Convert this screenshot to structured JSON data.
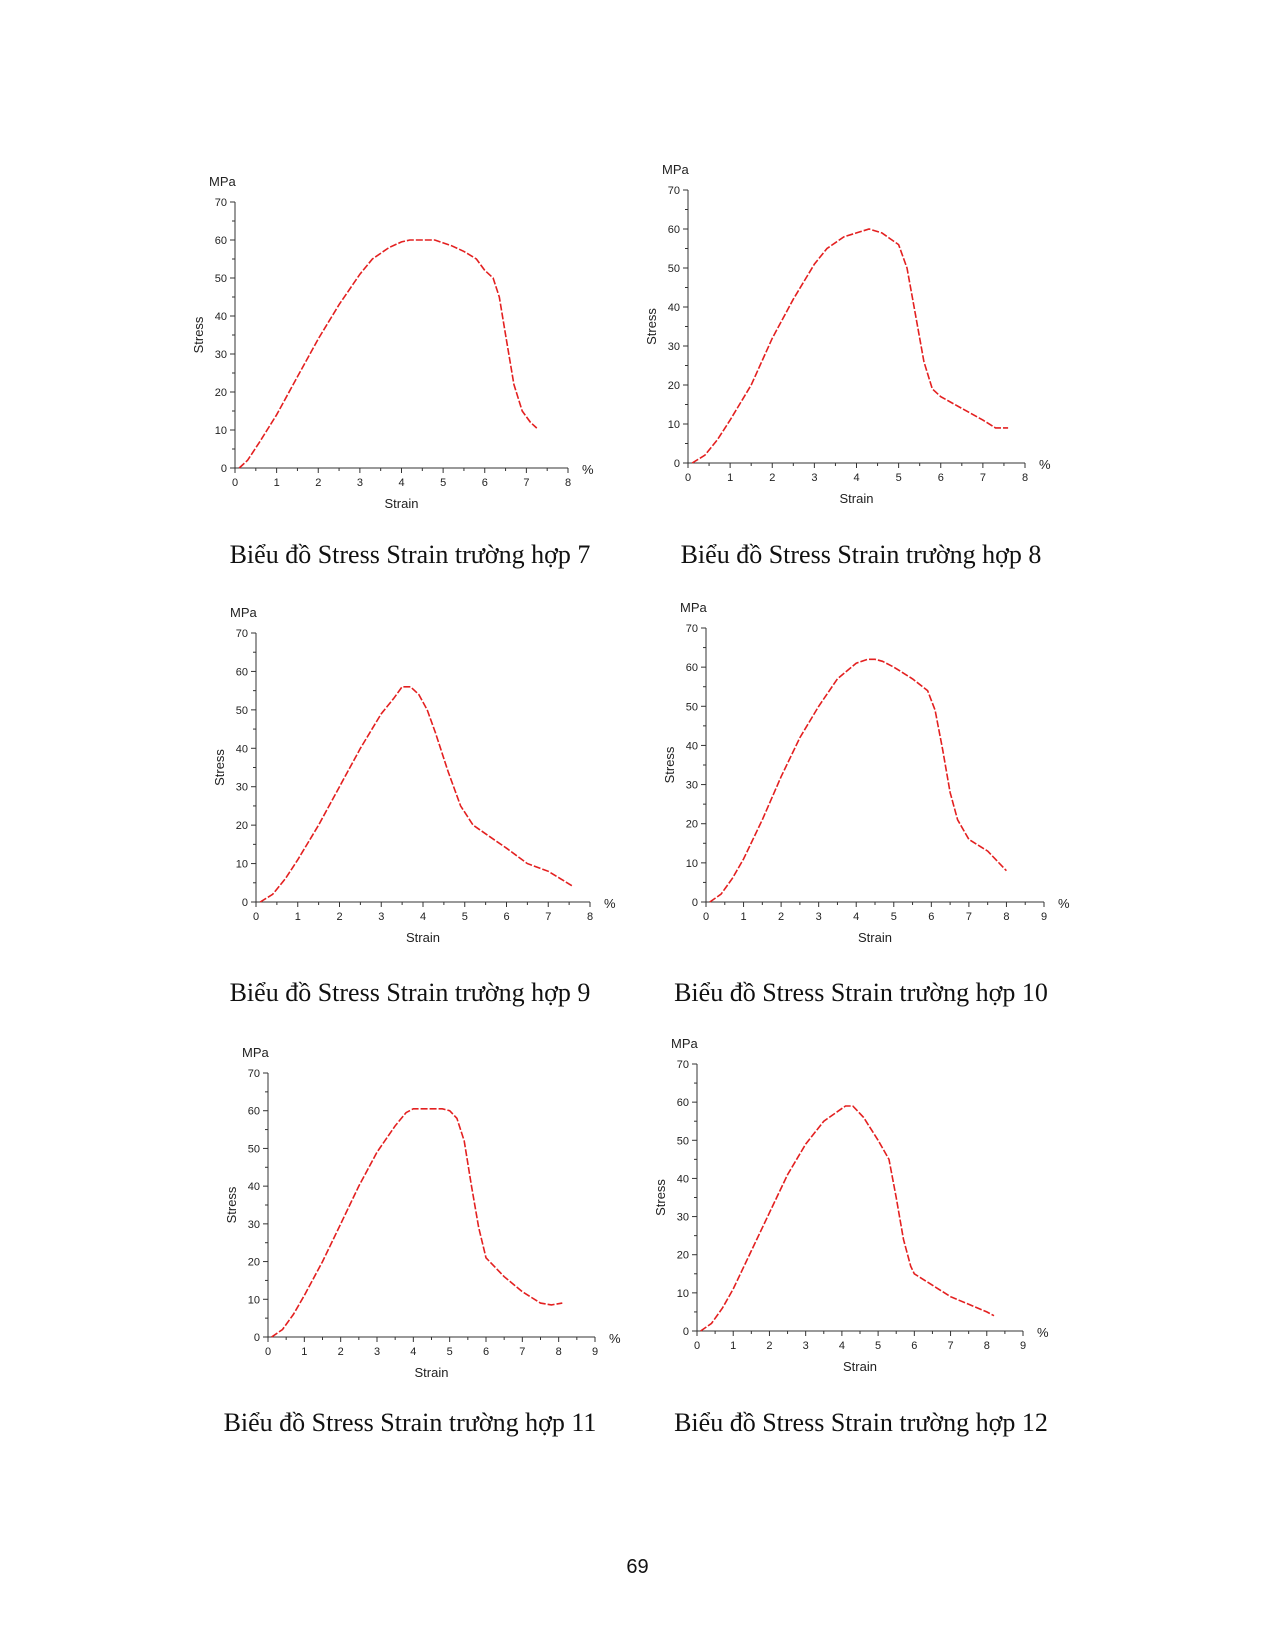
{
  "page_number": "69",
  "colors": {
    "curve": "#e32020",
    "axis": "#333333",
    "text": "#111111"
  },
  "chart_data": [
    {
      "type": "line",
      "caption": "Biểu đồ Stress Strain trường hợp 7",
      "unit_y": "MPa",
      "unit_x": "%",
      "ylabel": "Stress",
      "xlabel": "Strain",
      "xlim": [
        0,
        8
      ],
      "ylim": [
        0,
        70
      ],
      "xticks": [
        0,
        1,
        2,
        3,
        4,
        5,
        6,
        7,
        8
      ],
      "yticks": [
        0,
        10,
        20,
        30,
        40,
        50,
        60,
        70
      ],
      "series": [
        {
          "name": "Stress",
          "x": [
            0.1,
            0.3,
            0.6,
            1.0,
            1.5,
            2.0,
            2.5,
            3.0,
            3.3,
            3.7,
            4.0,
            4.2,
            4.5,
            4.8,
            5.2,
            5.5,
            5.8,
            6.0,
            6.2,
            6.35,
            6.5,
            6.7,
            6.9,
            7.1,
            7.25
          ],
          "y": [
            0,
            2,
            7,
            14,
            24,
            34,
            43,
            51,
            55,
            58,
            59.5,
            60,
            60,
            60,
            58.5,
            57,
            55,
            52,
            50,
            45,
            35,
            22,
            15,
            12,
            10.5
          ]
        }
      ]
    },
    {
      "type": "line",
      "caption": "Biểu đồ Stress Strain trường hợp 8",
      "unit_y": "MPa",
      "unit_x": "%",
      "ylabel": "Stress",
      "xlabel": "Strain",
      "xlim": [
        0,
        8
      ],
      "ylim": [
        0,
        70
      ],
      "xticks": [
        0,
        1,
        2,
        3,
        4,
        5,
        6,
        7,
        8
      ],
      "yticks": [
        0,
        10,
        20,
        30,
        40,
        50,
        60,
        70
      ],
      "series": [
        {
          "name": "Stress",
          "x": [
            0.1,
            0.4,
            0.7,
            1.0,
            1.5,
            2.0,
            2.5,
            3.0,
            3.3,
            3.7,
            4.0,
            4.3,
            4.6,
            5.0,
            5.2,
            5.4,
            5.6,
            5.8,
            6.0,
            6.5,
            7.0,
            7.3,
            7.6
          ],
          "y": [
            0,
            2,
            6,
            11,
            20,
            32,
            42,
            51,
            55,
            58,
            59,
            60,
            59,
            56,
            50,
            38,
            26,
            19,
            17,
            14,
            11,
            9,
            9
          ]
        }
      ]
    },
    {
      "type": "line",
      "caption": "Biểu đồ Stress Strain trường hợp 9",
      "unit_y": "MPa",
      "unit_x": "%",
      "ylabel": "Stress",
      "xlabel": "Strain",
      "xlim": [
        0,
        8
      ],
      "ylim": [
        0,
        70
      ],
      "xticks": [
        0,
        1,
        2,
        3,
        4,
        5,
        6,
        7,
        8
      ],
      "yticks": [
        0,
        10,
        20,
        30,
        40,
        50,
        60,
        70
      ],
      "series": [
        {
          "name": "Stress",
          "x": [
            0.1,
            0.4,
            0.7,
            1.0,
            1.5,
            2.0,
            2.5,
            3.0,
            3.3,
            3.5,
            3.7,
            3.9,
            4.1,
            4.3,
            4.6,
            4.9,
            5.2,
            5.6,
            6.0,
            6.5,
            7.0,
            7.3,
            7.6
          ],
          "y": [
            0,
            2,
            6,
            11,
            20,
            30,
            40,
            49,
            53,
            56,
            56,
            54,
            50,
            44,
            34,
            25,
            20,
            17,
            14,
            10,
            8,
            6,
            4
          ]
        }
      ]
    },
    {
      "type": "line",
      "caption": "Biểu đồ Stress Strain trường hợp 10",
      "unit_y": "MPa",
      "unit_x": "%",
      "ylabel": "Stress",
      "xlabel": "Strain",
      "xlim": [
        0,
        9
      ],
      "ylim": [
        0,
        70
      ],
      "xticks": [
        0,
        1,
        2,
        3,
        4,
        5,
        6,
        7,
        8,
        9
      ],
      "yticks": [
        0,
        10,
        20,
        30,
        40,
        50,
        60,
        70
      ],
      "series": [
        {
          "name": "Stress",
          "x": [
            0.1,
            0.4,
            0.7,
            1.0,
            1.5,
            2.0,
            2.5,
            3.0,
            3.5,
            4.0,
            4.3,
            4.5,
            4.7,
            5.0,
            5.5,
            5.9,
            6.1,
            6.3,
            6.5,
            6.7,
            7.0,
            7.5,
            8.0
          ],
          "y": [
            0,
            2,
            6,
            11,
            21,
            32,
            42,
            50,
            57,
            61,
            62,
            62,
            61.5,
            60,
            57,
            54,
            49,
            39,
            28,
            21,
            16,
            13,
            8
          ]
        }
      ]
    },
    {
      "type": "line",
      "caption": "Biểu đồ Stress Strain trường hợp 11",
      "unit_y": "MPa",
      "unit_x": "%",
      "ylabel": "Stress",
      "xlabel": "Strain",
      "xlim": [
        0,
        9
      ],
      "ylim": [
        0,
        70
      ],
      "xticks": [
        0,
        1,
        2,
        3,
        4,
        5,
        6,
        7,
        8,
        9
      ],
      "yticks": [
        0,
        10,
        20,
        30,
        40,
        50,
        60,
        70
      ],
      "series": [
        {
          "name": "Stress",
          "x": [
            0.1,
            0.4,
            0.7,
            1.0,
            1.5,
            2.0,
            2.5,
            3.0,
            3.5,
            3.8,
            4.0,
            4.5,
            4.8,
            5.0,
            5.2,
            5.4,
            5.6,
            5.8,
            6.0,
            6.5,
            7.0,
            7.5,
            7.8,
            8.1
          ],
          "y": [
            0,
            2,
            6,
            11,
            20,
            30,
            40,
            49,
            56,
            59.5,
            60.5,
            60.5,
            60.5,
            60,
            58,
            52,
            40,
            29,
            21,
            16,
            12,
            9,
            8.5,
            9
          ]
        }
      ]
    },
    {
      "type": "line",
      "caption": "Biểu đồ Stress Strain trường hợp 12",
      "unit_y": "MPa",
      "unit_x": "%",
      "ylabel": "Stress",
      "xlabel": "Strain",
      "xlim": [
        0,
        9
      ],
      "ylim": [
        0,
        70
      ],
      "xticks": [
        0,
        1,
        2,
        3,
        4,
        5,
        6,
        7,
        8,
        9
      ],
      "yticks": [
        0,
        10,
        20,
        30,
        40,
        50,
        60,
        70
      ],
      "series": [
        {
          "name": "Stress",
          "x": [
            0.1,
            0.4,
            0.7,
            1.0,
            1.5,
            2.0,
            2.5,
            3.0,
            3.5,
            3.8,
            4.1,
            4.3,
            4.6,
            5.0,
            5.3,
            5.5,
            5.7,
            5.9,
            6.0,
            6.5,
            7.0,
            7.5,
            8.0,
            8.2
          ],
          "y": [
            0,
            2,
            6,
            11,
            21,
            31,
            41,
            49,
            55,
            57,
            59,
            59,
            56,
            50,
            45,
            35,
            24,
            17,
            15,
            12,
            9,
            7,
            5,
            4
          ]
        }
      ]
    }
  ]
}
